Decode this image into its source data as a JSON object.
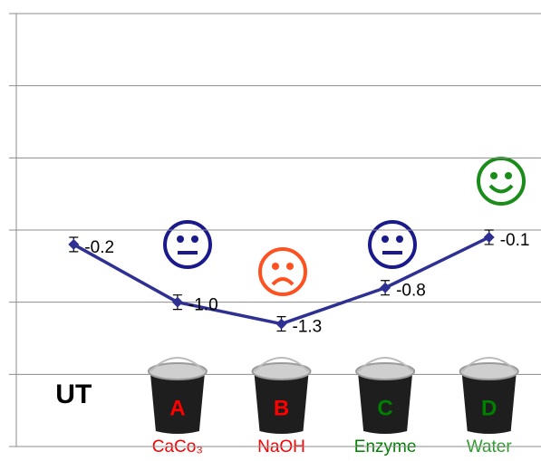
{
  "chart_data": {
    "type": "line",
    "categories": [
      "UT",
      "CaCo₃",
      "NaOH",
      "Enzyme",
      "Water"
    ],
    "category_colors": [
      "#000000",
      "#ff0000",
      "#ff0000",
      "#008000",
      "#2e9e2e"
    ],
    "bucket_labels": [
      null,
      "A",
      "B",
      "C",
      "D"
    ],
    "bucket_label_colors": [
      null,
      "#ff0000",
      "#ff0000",
      "#008000",
      "#008000"
    ],
    "series": [
      {
        "color": "#2e3192",
        "values": [
          -0.2,
          -1.0,
          -1.3,
          -0.8,
          -0.1
        ],
        "value_labels": [
          "-0.2",
          "-1.0",
          "-1.3",
          "-0.8",
          "-0.1"
        ],
        "errors": [
          0.1,
          0.1,
          0.1,
          0.1,
          0.1
        ]
      }
    ],
    "ylim": [
      -3,
      3
    ],
    "yticks": [
      -3,
      -2,
      -1,
      0,
      1,
      2,
      3
    ],
    "grid": true
  }
}
